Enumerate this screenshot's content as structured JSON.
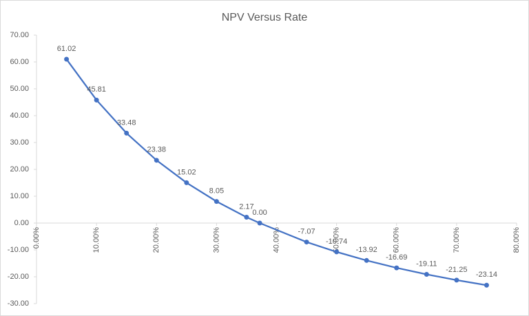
{
  "chart_data": {
    "type": "line",
    "title": "NPV Versus Rate",
    "x": [
      5,
      10,
      15,
      20,
      25,
      30,
      35,
      37.2,
      45,
      50,
      55,
      60,
      65,
      70,
      75
    ],
    "series": [
      {
        "name": "NPV",
        "color": "#4472c4",
        "values": [
          61.02,
          45.81,
          33.48,
          23.38,
          15.02,
          8.05,
          2.17,
          0,
          -7.07,
          -10.74,
          -13.92,
          -16.69,
          -19.11,
          -21.25,
          -23.14
        ],
        "value_labels": [
          "61.02",
          "45.81",
          "33.48",
          "23.38",
          "15.02",
          "8.05",
          "2.17",
          "0.00",
          "-7.07",
          "-10.74",
          "-13.92",
          "-16.69",
          "-19.11",
          "-21.25",
          "-23.14"
        ]
      }
    ],
    "xlim": [
      0,
      80
    ],
    "xticks": [
      {
        "value": 0,
        "label": "0.00%"
      },
      {
        "value": 10,
        "label": "10.00%"
      },
      {
        "value": 20,
        "label": "20.00%"
      },
      {
        "value": 30,
        "label": "30.00%"
      },
      {
        "value": 40,
        "label": "40.00%"
      },
      {
        "value": 50,
        "label": "50.00%"
      },
      {
        "value": 60,
        "label": "60.00%"
      },
      {
        "value": 70,
        "label": "70.00%"
      },
      {
        "value": 80,
        "label": "80.00%"
      }
    ],
    "ylim": [
      -30,
      70
    ],
    "yticks": [
      {
        "value": -30,
        "label": "-30.00"
      },
      {
        "value": -20,
        "label": "-20.00"
      },
      {
        "value": -10,
        "label": "-10.00"
      },
      {
        "value": 0,
        "label": "0.00"
      },
      {
        "value": 10,
        "label": "10.00"
      },
      {
        "value": 20,
        "label": "20.00"
      },
      {
        "value": 30,
        "label": "30.00"
      },
      {
        "value": 40,
        "label": "40.00"
      },
      {
        "value": 50,
        "label": "50.00"
      },
      {
        "value": 60,
        "label": "60.00"
      },
      {
        "value": 70,
        "label": "70.00"
      }
    ],
    "grid": false
  }
}
